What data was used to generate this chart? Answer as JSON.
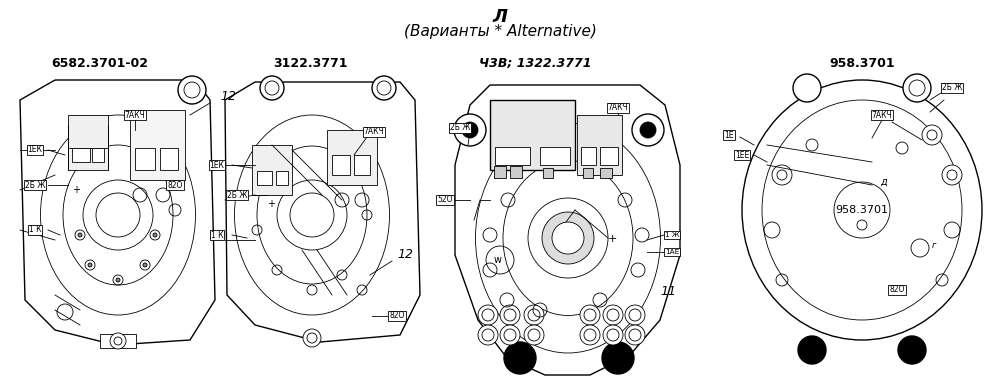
{
  "title_line1": "Л",
  "title_line2": "(Варианты * Alternative)",
  "background_color": "#ffffff",
  "alt1_name": "6582.3701-02",
  "alt2_name": "3122.3771",
  "alt3_name": "Ч3В; 1322.3771",
  "alt4_name": "958.3701",
  "alt4_inner": "958.3701",
  "fig_width": 10.0,
  "fig_height": 3.84,
  "lw_main": 1.0,
  "lw_thin": 0.6,
  "tag_fs": 5.5,
  "label_fs": 9.0,
  "title_fs": 13,
  "sub_fs": 11,
  "annot_fs": 9
}
